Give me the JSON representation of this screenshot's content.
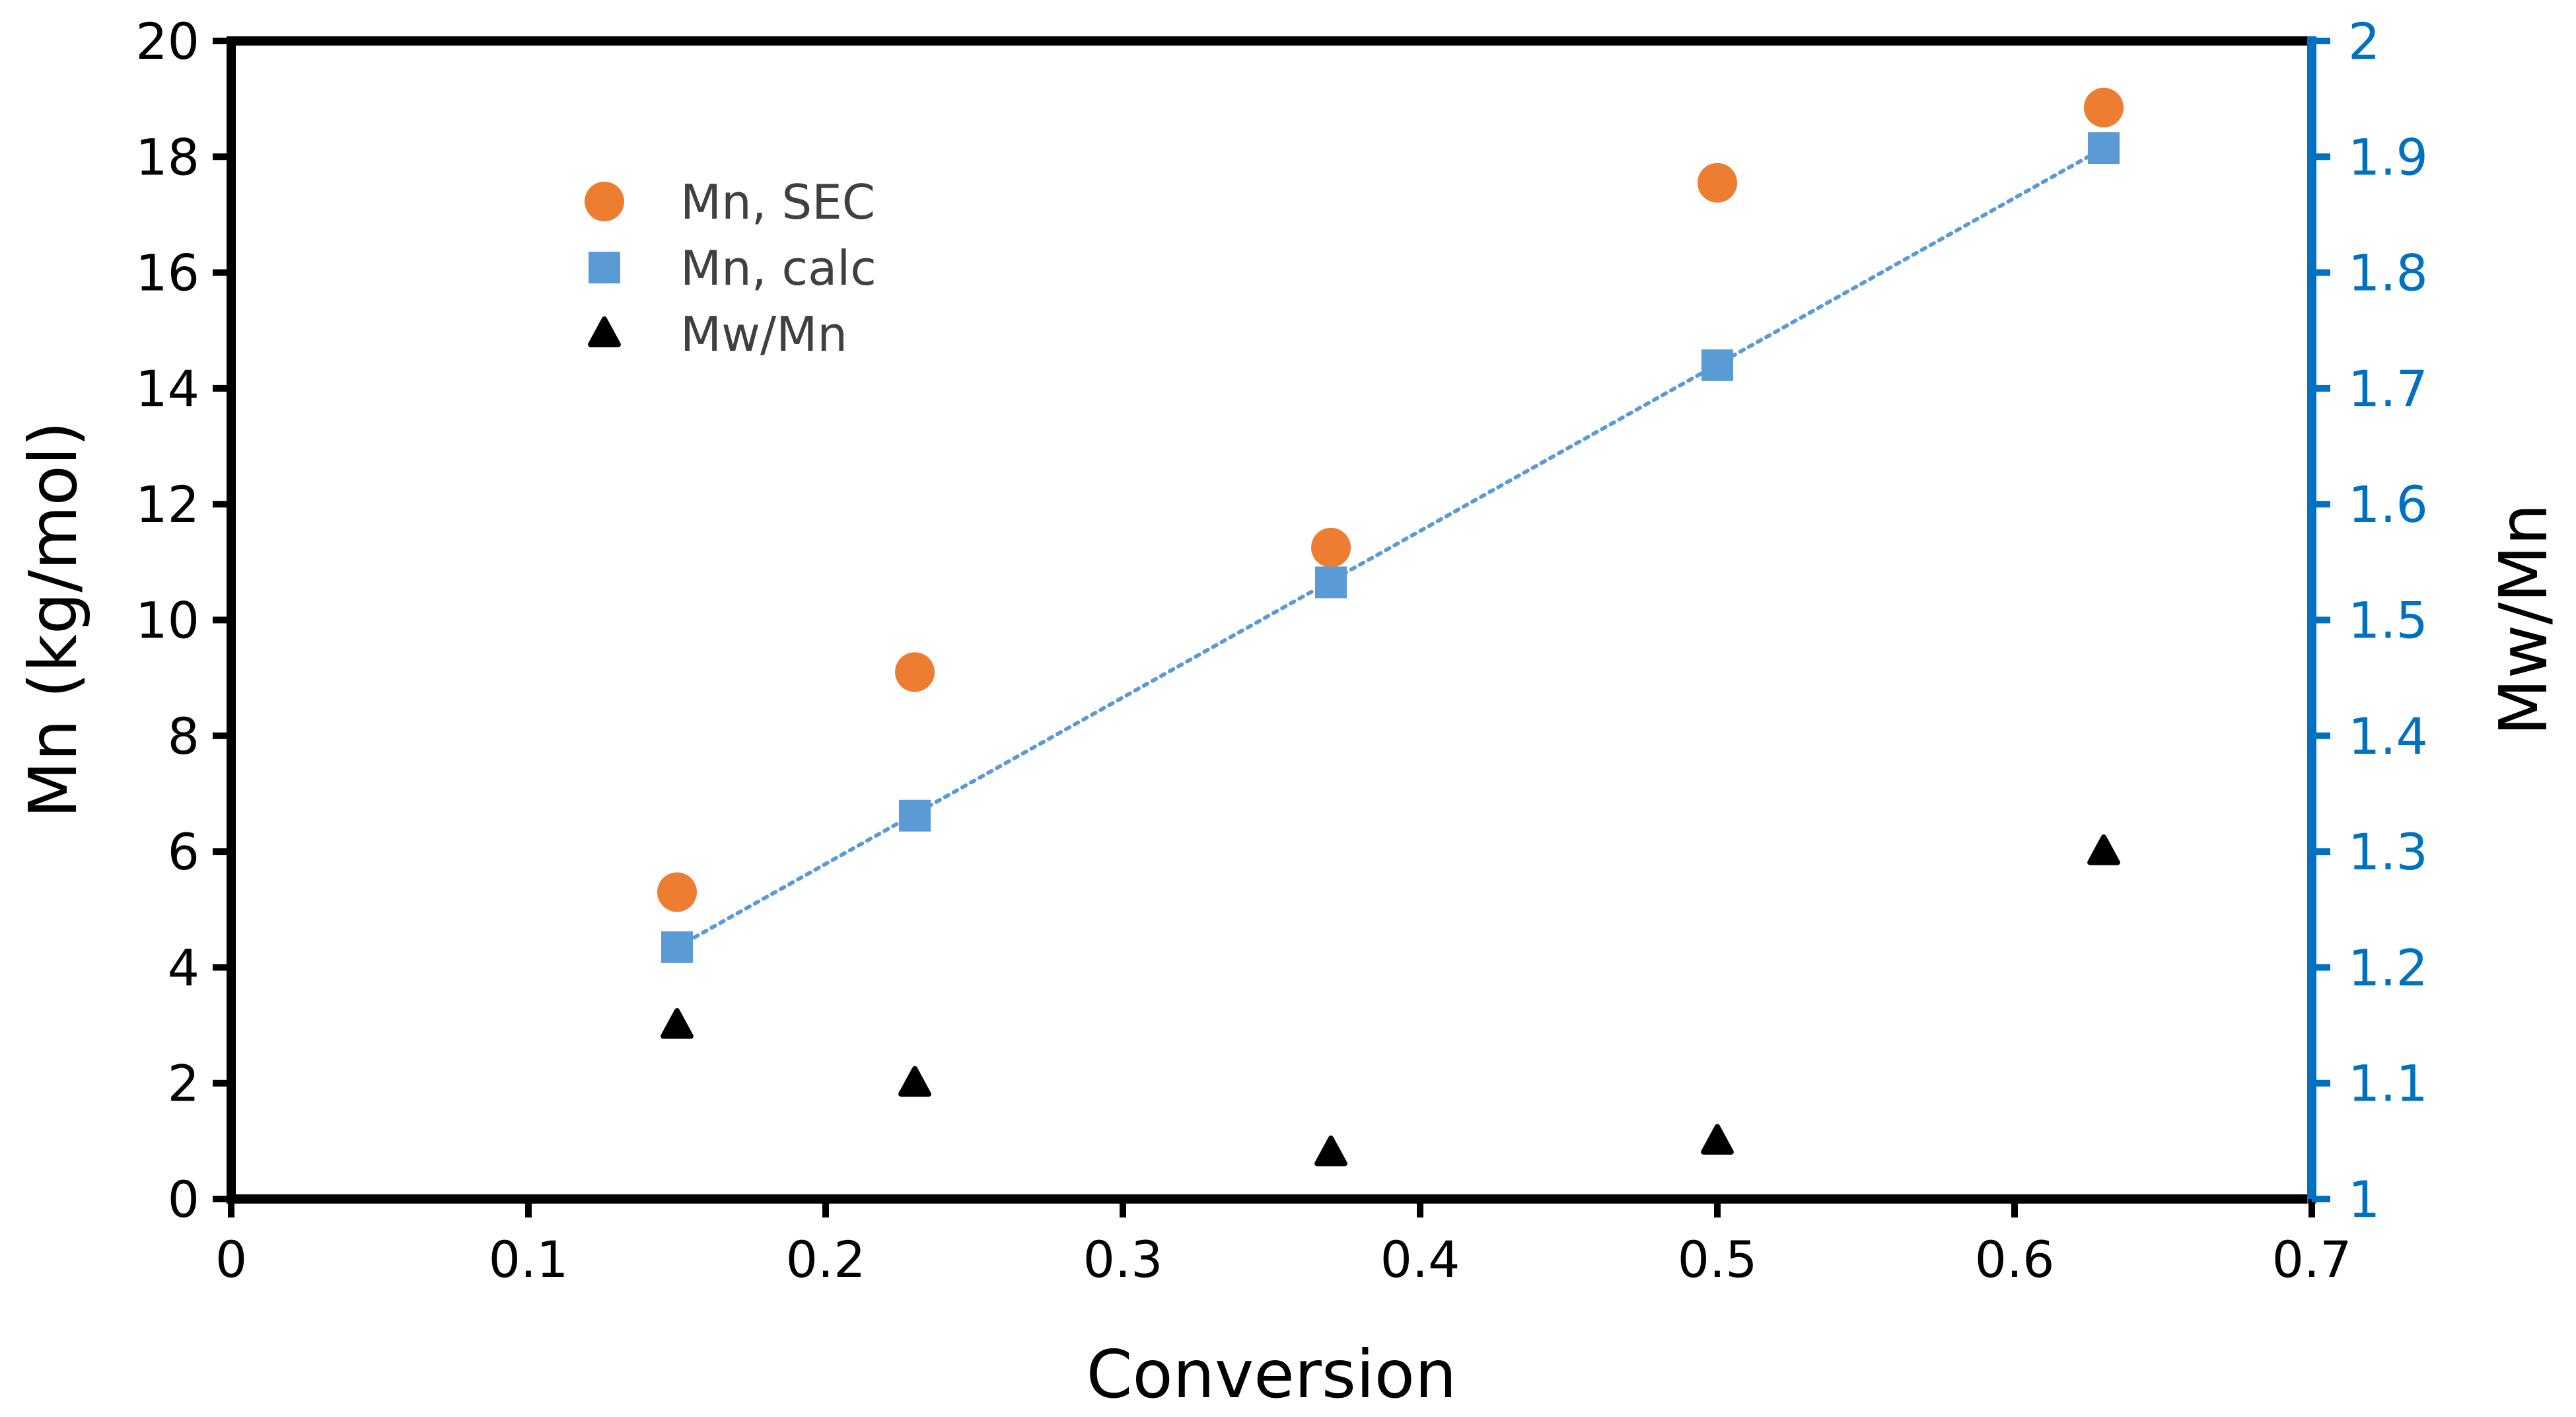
{
  "chart_data": {
    "type": "scatter",
    "title": "",
    "xlabel": "Conversion",
    "ylabel": "Mn (kg/mol)",
    "y2label": "Mw/Mn",
    "xlim": [
      0,
      0.7
    ],
    "ylim": [
      0,
      20
    ],
    "y2lim": [
      1,
      2
    ],
    "x_ticks": [
      0,
      0.1,
      0.2,
      0.3,
      0.4,
      0.5,
      0.6,
      0.7
    ],
    "x_tick_labels": [
      "0",
      "0.1",
      "0.2",
      "0.3",
      "0.4",
      "0.5",
      "0.6",
      "0.7"
    ],
    "y_ticks": [
      0,
      2,
      4,
      6,
      8,
      10,
      12,
      14,
      16,
      18,
      20
    ],
    "y_tick_labels": [
      "0",
      "2",
      "4",
      "6",
      "8",
      "10",
      "12",
      "14",
      "16",
      "18",
      "20"
    ],
    "y2_ticks": [
      1,
      1.1,
      1.2,
      1.3,
      1.4,
      1.5,
      1.6,
      1.7,
      1.8,
      1.9,
      2
    ],
    "y2_tick_labels": [
      "1",
      "1.1",
      "1.2",
      "1.3",
      "1.4",
      "1.5",
      "1.6",
      "1.7",
      "1.8",
      "1.9",
      "2"
    ],
    "legend_position": "top-left",
    "grid": false,
    "series": [
      {
        "name": "Mn, SEC",
        "axis": "left",
        "marker": "circle",
        "color": "#ED7D31",
        "x": [
          0.15,
          0.23,
          0.37,
          0.5,
          0.63
        ],
        "y": [
          5.3,
          9.1,
          11.25,
          17.55,
          18.85
        ]
      },
      {
        "name": "Mn, calc",
        "axis": "left",
        "marker": "square",
        "color": "#5B9BD5",
        "trendline": "dotted-linear",
        "x": [
          0.15,
          0.23,
          0.37,
          0.5,
          0.63
        ],
        "y": [
          4.35,
          6.62,
          10.65,
          14.4,
          18.15
        ]
      },
      {
        "name": "Mw/Mn",
        "axis": "right",
        "marker": "triangle",
        "color": "#000000",
        "x": [
          0.15,
          0.23,
          0.37,
          0.5,
          0.63
        ],
        "y": [
          1.15,
          1.1,
          1.04,
          1.05,
          1.3
        ]
      }
    ],
    "colors": {
      "left_axis": "#000000",
      "right_axis": "#0070C0",
      "trendline": "#5B9BD5"
    }
  }
}
